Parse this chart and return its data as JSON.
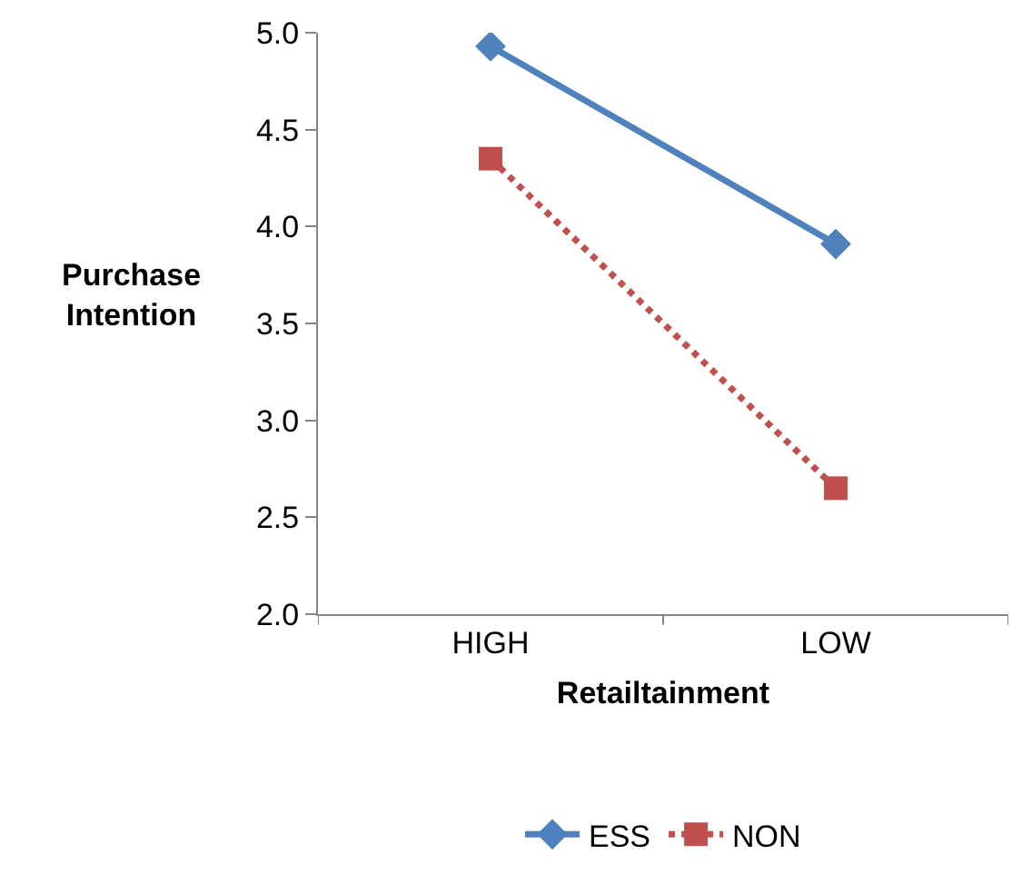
{
  "chart_data": {
    "type": "line",
    "xlabel": "Retailtainment",
    "ylabel": "Purchase Intention",
    "categories": [
      "HIGH",
      "LOW"
    ],
    "series": [
      {
        "name": "ESS",
        "color": "#4f81bd",
        "values": [
          4.93,
          3.91
        ],
        "marker": "diamond",
        "line_style": "solid"
      },
      {
        "name": "NON",
        "color": "#c0504d",
        "values": [
          4.35,
          2.65
        ],
        "marker": "square",
        "line_style": "dotted"
      }
    ],
    "ylim": [
      2,
      5
    ],
    "yticks": [
      {
        "value": 2,
        "label": "2.0"
      },
      {
        "value": 2.5,
        "label": "2.5"
      },
      {
        "value": 3,
        "label": "3.0"
      },
      {
        "value": 3.5,
        "label": "3.5"
      },
      {
        "value": 4,
        "label": "4.0"
      },
      {
        "value": 4.5,
        "label": "4.5"
      },
      {
        "value": 5,
        "label": "5.0"
      }
    ],
    "grid": false,
    "legend": "bottom"
  }
}
